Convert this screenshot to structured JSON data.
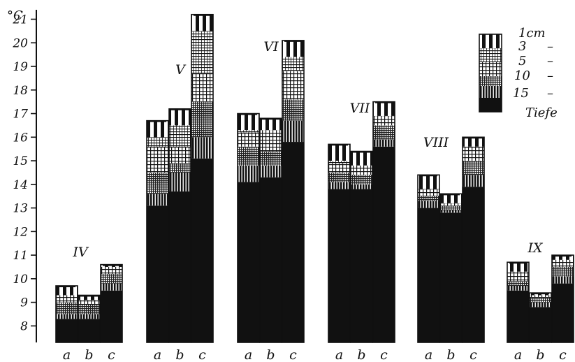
{
  "chart_data": {
    "type": "bar",
    "title": "",
    "xlabel": "",
    "ylabel": "°C",
    "ylim": [
      7.3,
      21.4
    ],
    "yticks": [
      8,
      9,
      10,
      11,
      12,
      13,
      14,
      15,
      16,
      17,
      18,
      19,
      20,
      21
    ],
    "grid": false,
    "legend_position": "top-right",
    "legend": {
      "header": "1cm",
      "entries": [
        {
          "label": "1cm",
          "pattern": "vstripes-wide"
        },
        {
          "label": "3",
          "pattern": "hlines"
        },
        {
          "label": "5",
          "pattern": "grid"
        },
        {
          "label": "10",
          "pattern": "dense-grid"
        },
        {
          "label": "15",
          "pattern": "vstripes-thin"
        },
        {
          "label": "Tiefe",
          "pattern": "solid"
        }
      ],
      "dash": "–"
    },
    "series_order": [
      "15",
      "10",
      "5",
      "3",
      "1cm"
    ],
    "groups": [
      {
        "month": "IV",
        "bars": [
          {
            "site": "a",
            "values": {
              "15": 8.3,
              "10": 8.5,
              "5": 9.0,
              "3": 9.3,
              "1cm": 9.7
            }
          },
          {
            "site": "b",
            "values": {
              "15": 8.3,
              "10": 8.5,
              "5": 8.9,
              "3": 9.1,
              "1cm": 9.3
            }
          },
          {
            "site": "c",
            "values": {
              "15": 9.5,
              "10": 9.8,
              "5": 10.2,
              "3": 10.5,
              "1cm": 10.6
            }
          }
        ]
      },
      {
        "month": "V",
        "bars": [
          {
            "site": "a",
            "values": {
              "15": 13.1,
              "10": 13.6,
              "5": 14.5,
              "3": 15.6,
              "1cm": 16.7
            }
          },
          {
            "site": "b",
            "values": {
              "15": 13.7,
              "10": 14.5,
              "5": 14.9,
              "3": 15.6,
              "1cm": 17.2
            }
          },
          {
            "site": "c",
            "values": {
              "15": 15.1,
              "10": 16.0,
              "5": 17.5,
              "3": 18.7,
              "1cm": 21.2
            }
          }
        ]
      },
      {
        "month": "VI",
        "bars": [
          {
            "site": "a",
            "values": {
              "15": 14.1,
              "10": 14.8,
              "5": 15.6,
              "3": 16.2,
              "1cm": 17.0
            }
          },
          {
            "site": "b",
            "values": {
              "15": 14.3,
              "10": 14.8,
              "5": 15.4,
              "3": 16.3,
              "1cm": 16.8
            }
          },
          {
            "site": "c",
            "values": {
              "15": 15.8,
              "10": 16.7,
              "5": 17.6,
              "3": 18.8,
              "1cm": 20.1
            }
          }
        ]
      },
      {
        "month": "VII",
        "bars": [
          {
            "site": "a",
            "values": {
              "15": 13.8,
              "10": 14.1,
              "5": 14.5,
              "3": 14.9,
              "1cm": 15.7
            }
          },
          {
            "site": "b",
            "values": {
              "15": 13.8,
              "10": 14.0,
              "5": 14.4,
              "3": 14.8,
              "1cm": 15.4
            }
          },
          {
            "site": "c",
            "values": {
              "15": 15.6,
              "10": 15.9,
              "5": 16.5,
              "3": 16.9,
              "1cm": 17.5
            }
          }
        ]
      },
      {
        "month": "VIII",
        "bars": [
          {
            "site": "a",
            "values": {
              "15": 13.0,
              "10": 13.3,
              "5": 13.5,
              "3": 13.8,
              "1cm": 14.4
            }
          },
          {
            "site": "b",
            "values": {
              "15": 12.8,
              "10": 12.9,
              "5": 13.1,
              "3": 13.2,
              "1cm": 13.6
            }
          },
          {
            "site": "c",
            "values": {
              "15": 13.9,
              "10": 14.4,
              "5": 15.0,
              "3": 15.6,
              "1cm": 16.0
            }
          }
        ]
      },
      {
        "month": "IX",
        "bars": [
          {
            "site": "a",
            "values": {
              "15": 9.5,
              "10": 9.7,
              "5": 9.9,
              "3": 10.3,
              "1cm": 10.7
            }
          },
          {
            "site": "b",
            "values": {
              "15": 8.8,
              "10": 9.0,
              "5": 9.2,
              "3": 9.3,
              "1cm": 9.4
            }
          },
          {
            "site": "c",
            "values": {
              "15": 9.8,
              "10": 10.1,
              "5": 10.5,
              "3": 10.8,
              "1cm": 11.0
            }
          }
        ]
      }
    ]
  }
}
